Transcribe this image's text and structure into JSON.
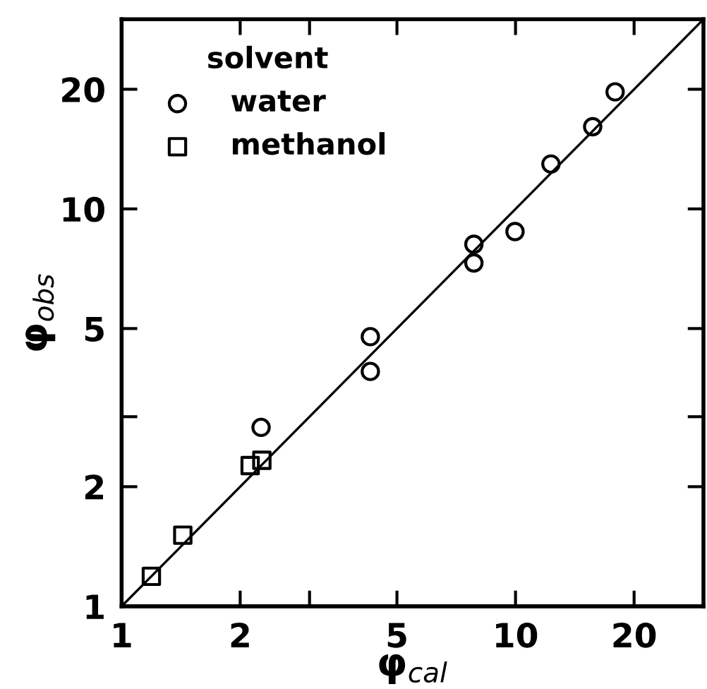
{
  "chart_data": {
    "type": "scatter",
    "xlabel": "φ$_{cal}$",
    "ylabel": "φ$_{obs}$",
    "legend_title": "solvent",
    "legend": "top left",
    "log": "xy",
    "xlim": [
      1,
      30
    ],
    "ylim": [
      1,
      30
    ],
    "xticks": [
      1,
      2,
      {
        "value": 3,
        "label": null
      },
      5,
      10,
      20
    ],
    "yticks": [
      1,
      2,
      {
        "value": 3,
        "label": null
      },
      5,
      10,
      20
    ],
    "grid": false,
    "series": [
      {
        "name": "water",
        "color": "#000000",
        "marker": "circle",
        "x": [
          4.28,
          4.28,
          2.26,
          7.84,
          7.84,
          9.97,
          12.3,
          15.7,
          17.9
        ],
        "values": [
          4.77,
          3.9,
          2.82,
          8.15,
          7.31,
          8.77,
          12.97,
          16.1,
          19.7
        ]
      },
      {
        "name": "methanol",
        "color": "#000000",
        "marker": "square",
        "x": [
          1.19,
          1.43,
          2.12,
          2.27
        ],
        "values": [
          1.19,
          1.51,
          2.26,
          2.33
        ]
      },
      {
        "type": "line",
        "color": "#000000",
        "marker": "none",
        "line_style": "solid",
        "x": [
          1,
          30
        ],
        "values": [
          1,
          30
        ]
      }
    ]
  }
}
